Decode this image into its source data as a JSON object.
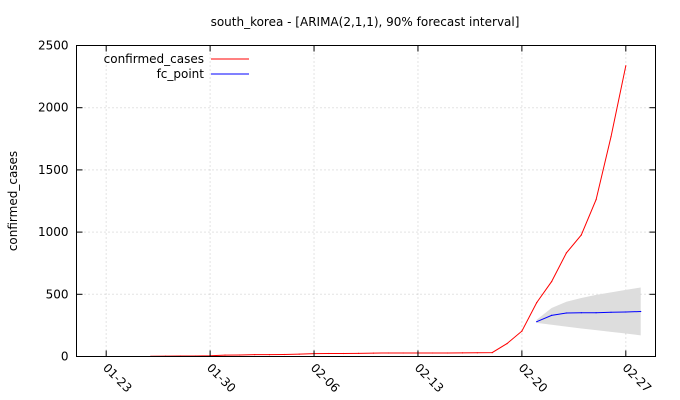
{
  "chart_data": {
    "type": "line",
    "title": "south_korea -  [ARIMA(2,1,1), 90% forecast interval]",
    "xlabel": "",
    "ylabel": "confirmed_cases",
    "xlim": [
      "2020-01-21",
      "2020-02-29"
    ],
    "ylim": [
      0,
      2500
    ],
    "grid": true,
    "legend_position": "top-left",
    "x_ticks": [
      "2020-01-23",
      "2020-01-30",
      "2020-02-06",
      "2020-02-13",
      "2020-02-20",
      "2020-02-27"
    ],
    "x_tick_labels": [
      "01-23",
      "01-30",
      "02-06",
      "02-13",
      "02-20",
      "02-27"
    ],
    "y_ticks": [
      0,
      500,
      1000,
      1500,
      2000,
      2500
    ],
    "series": [
      {
        "name": "confirmed_cases",
        "color": "#ff0000",
        "points": [
          [
            "2020-01-26",
            2
          ],
          [
            "2020-01-27",
            3
          ],
          [
            "2020-01-28",
            4
          ],
          [
            "2020-01-29",
            4
          ],
          [
            "2020-01-30",
            6
          ],
          [
            "2020-01-31",
            11
          ],
          [
            "2020-02-01",
            12
          ],
          [
            "2020-02-02",
            15
          ],
          [
            "2020-02-03",
            15
          ],
          [
            "2020-02-04",
            16
          ],
          [
            "2020-02-05",
            19
          ],
          [
            "2020-02-06",
            23
          ],
          [
            "2020-02-07",
            24
          ],
          [
            "2020-02-08",
            24
          ],
          [
            "2020-02-09",
            25
          ],
          [
            "2020-02-10",
            27
          ],
          [
            "2020-02-11",
            28
          ],
          [
            "2020-02-12",
            28
          ],
          [
            "2020-02-13",
            28
          ],
          [
            "2020-02-14",
            28
          ],
          [
            "2020-02-15",
            28
          ],
          [
            "2020-02-16",
            29
          ],
          [
            "2020-02-17",
            30
          ],
          [
            "2020-02-18",
            31
          ],
          [
            "2020-02-19",
            104
          ],
          [
            "2020-02-20",
            204
          ],
          [
            "2020-02-21",
            433
          ],
          [
            "2020-02-22",
            602
          ],
          [
            "2020-02-23",
            833
          ],
          [
            "2020-02-24",
            977
          ],
          [
            "2020-02-25",
            1261
          ],
          [
            "2020-02-26",
            1766
          ],
          [
            "2020-02-27",
            2337
          ]
        ]
      },
      {
        "name": "fc_point",
        "color": "#0000ff",
        "points": [
          [
            "2020-02-21",
            280
          ],
          [
            "2020-02-22",
            330
          ],
          [
            "2020-02-23",
            350
          ],
          [
            "2020-02-24",
            352
          ],
          [
            "2020-02-25",
            352
          ],
          [
            "2020-02-26",
            355
          ],
          [
            "2020-02-27",
            358
          ],
          [
            "2020-02-28",
            362
          ]
        ]
      }
    ],
    "interval": {
      "level": "90%",
      "color": "#dddddd",
      "lower": [
        [
          "2020-02-21",
          270
        ],
        [
          "2020-02-22",
          255
        ],
        [
          "2020-02-23",
          240
        ],
        [
          "2020-02-24",
          225
        ],
        [
          "2020-02-25",
          212
        ],
        [
          "2020-02-26",
          198
        ],
        [
          "2020-02-27",
          185
        ],
        [
          "2020-02-28",
          170
        ]
      ],
      "upper": [
        [
          "2020-02-21",
          295
        ],
        [
          "2020-02-22",
          390
        ],
        [
          "2020-02-23",
          440
        ],
        [
          "2020-02-24",
          470
        ],
        [
          "2020-02-25",
          495
        ],
        [
          "2020-02-26",
          515
        ],
        [
          "2020-02-27",
          535
        ],
        [
          "2020-02-28",
          555
        ]
      ]
    }
  }
}
